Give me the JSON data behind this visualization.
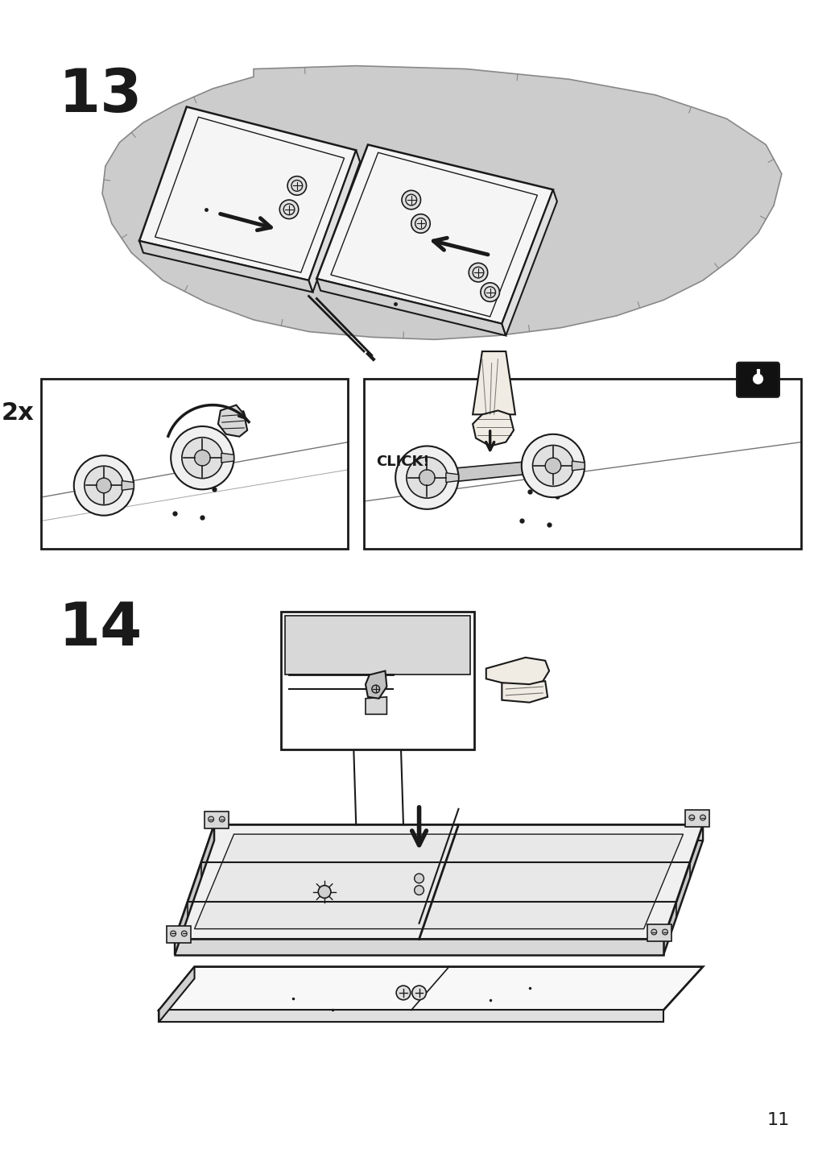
{
  "bg_color": "#ffffff",
  "page_number": "11",
  "step13_label": "13",
  "step14_label": "14",
  "text_2x": "2x",
  "text_click": "CLICK!",
  "line_color": "#1a1a1a",
  "carpet_color": "#cccccc",
  "board_face_color": "#f5f5f5",
  "board_edge_color": "#e0e0e0",
  "board_side_color": "#d0d0d0",
  "step_label_fontsize": 54,
  "page_num_fontsize": 16,
  "subbox_fontsize": 22,
  "click_fontsize": 13,
  "lock_color": "#111111"
}
